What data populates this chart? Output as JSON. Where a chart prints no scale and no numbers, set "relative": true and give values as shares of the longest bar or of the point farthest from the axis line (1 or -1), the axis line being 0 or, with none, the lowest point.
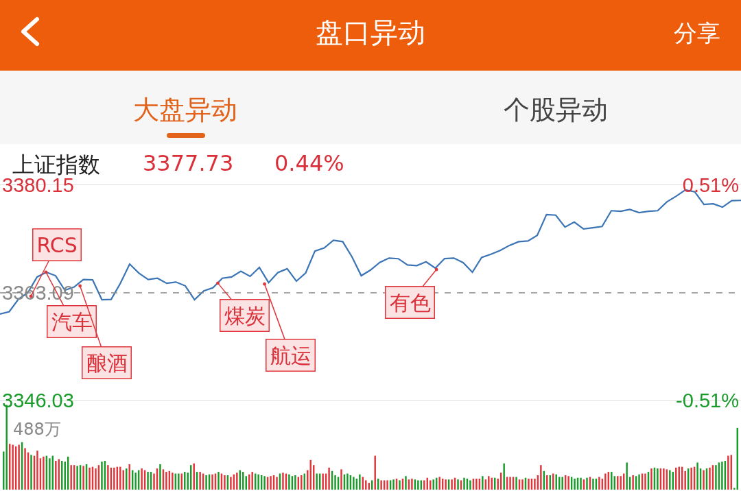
{
  "chart_data": [
    {
      "type": "line",
      "title": "上证指数",
      "annotations": [
        "盘口异动",
        "分享",
        "大盘异动",
        "个股异动",
        "3377.73",
        "0.44%",
        "RCS",
        "汽车",
        "酿酒",
        "煤炭",
        "航运",
        "有色"
      ],
      "categories": [
        null,
        null,
        null,
        null,
        null,
        null,
        null,
        null,
        null,
        null,
        null,
        null,
        null,
        null,
        null,
        null,
        null,
        null,
        null,
        null,
        null,
        null,
        null,
        null,
        null,
        null,
        null,
        null,
        null,
        null,
        null,
        null,
        null,
        null,
        null,
        null,
        null,
        null,
        null,
        null,
        null,
        null,
        null,
        null,
        null,
        null,
        null,
        null,
        null,
        null,
        null,
        null,
        null,
        null,
        null,
        null,
        null,
        null,
        null,
        null,
        null,
        null,
        null,
        null,
        null,
        null,
        null,
        null,
        null,
        null,
        null,
        null,
        null,
        null,
        null,
        null,
        null,
        null,
        null,
        null,
        null
      ],
      "series": [
        {
          "color": "#3a74b5",
          "values": [
            3359.72,
            3360.1,
            3362.1,
            3363.09,
            3365.6,
            3366.35,
            3365.8,
            3363.5,
            3364.0,
            3365.2,
            3365.15,
            3362.0,
            3362.05,
            3364.6,
            3367.65,
            3366.2,
            3365.2,
            3365.4,
            3364.6,
            3364.8,
            3364.2,
            3362.0,
            3363.4,
            3363.9,
            3365.4,
            3365.6,
            3366.5,
            3365.7,
            3367.11,
            3364.7,
            3366.3,
            3366.9,
            3364.94,
            3366.24,
            3369.7,
            3370.2,
            3371.4,
            3371.2,
            3368.8,
            3365.8,
            3366.7,
            3367.9,
            3368.6,
            3368.5,
            3367.5,
            3367.4,
            3368.0,
            3367.0,
            3368.52,
            3368.6,
            3367.87,
            3366.35,
            3368.7,
            3369.2,
            3369.8,
            3370.6,
            3371.2,
            3371.3,
            3372.2,
            3375.5,
            3375.4,
            3373.5,
            3374.3,
            3373.2,
            3373.4,
            3373.6,
            3376.1,
            3376.0,
            3376.3,
            3375.8,
            3376.0,
            3376.1,
            3377.5,
            3378.4,
            3379.4,
            3379.1,
            3377.1,
            3377.2,
            3376.67,
            3377.7,
            3377.73
          ]
        }
      ],
      "ylim": [
        3346.03,
        3380.15
      ],
      "yticks": [
        3346.03,
        3363.09,
        3380.15
      ],
      "y2lim": [
        -0.51,
        0.51
      ],
      "y2ticks": [
        {
          "value": -0.51,
          "label": "-0.51%"
        },
        {
          "value": 0.51,
          "label": "0.51%"
        }
      ],
      "ref_lines": [
        {
          "axis": "y",
          "value": 3363.09,
          "color": "#888888",
          "line_style": "dashed"
        }
      ],
      "tick_labels": "y",
      "marker": "none",
      "line_style": "solid"
    },
    {
      "type": "bar",
      "relative": true,
      "tick_labels": false,
      "annotations": [
        "488万"
      ],
      "categories": [
        null,
        null,
        null,
        null,
        null,
        null,
        null,
        null,
        null,
        null,
        null,
        null,
        null,
        null,
        null,
        null,
        null,
        null,
        null,
        null,
        null,
        null,
        null,
        null,
        null,
        null,
        null,
        null,
        null,
        null,
        null,
        null,
        null,
        null,
        null,
        null,
        null,
        null,
        null,
        null,
        null,
        null,
        null,
        null,
        null,
        null,
        null,
        null,
        null,
        null,
        null,
        null,
        null,
        null,
        null,
        null,
        null,
        null,
        null,
        null,
        null,
        null,
        null,
        null,
        null,
        null,
        null,
        null,
        null,
        null,
        null,
        null,
        null,
        null,
        null,
        null,
        null,
        null,
        null,
        null,
        null,
        null,
        null,
        null,
        null,
        null,
        null,
        null,
        null,
        null,
        null,
        null,
        null,
        null,
        null,
        null,
        null,
        null,
        null,
        null,
        null,
        null,
        null,
        null,
        null,
        null,
        null,
        null,
        null,
        null,
        null,
        null,
        null,
        null,
        null,
        null,
        null,
        null,
        null,
        null,
        null,
        null,
        null,
        null,
        null,
        null,
        null,
        null,
        null,
        null,
        null,
        null,
        null,
        null,
        null,
        null,
        null,
        null,
        null,
        null,
        null,
        null,
        null,
        null,
        null,
        null,
        null,
        null,
        null,
        null,
        null,
        null,
        null,
        null,
        null,
        null,
        null,
        null,
        null,
        null,
        null,
        null,
        null,
        null,
        null,
        null,
        null,
        null,
        null,
        null,
        null,
        null,
        null,
        null,
        null,
        null,
        null,
        null,
        null,
        null,
        null,
        null,
        null,
        null,
        null,
        null,
        null,
        null,
        null,
        null,
        null,
        null,
        null,
        null,
        null,
        null,
        null,
        null,
        null,
        null,
        null,
        null,
        null,
        null,
        null,
        null,
        null,
        null,
        null,
        null,
        null,
        null,
        null,
        null,
        null,
        null,
        null,
        null,
        null,
        null,
        null,
        null,
        null,
        null,
        null,
        null,
        null,
        null,
        null,
        null,
        null,
        null,
        null,
        null,
        null,
        null,
        null,
        null,
        null,
        null
      ],
      "values": [
        0.45,
        1,
        0.54,
        0.53,
        0.51,
        0.53,
        0.56,
        0.49,
        0.44,
        0.41,
        0.4,
        0.46,
        0.37,
        0.39,
        0.4,
        0.37,
        0.4,
        0.34,
        0.36,
        0.34,
        0.33,
        0.39,
        0.29,
        0.29,
        0.28,
        0.29,
        0.28,
        0.3,
        0.26,
        0.27,
        0.25,
        0.29,
        0.33,
        0.34,
        0.29,
        0.26,
        0.26,
        0.27,
        0.27,
        0.23,
        0.25,
        0.3,
        0.23,
        0.2,
        0.23,
        0.25,
        0.23,
        0.21,
        0.21,
        0.19,
        0.25,
        0.3,
        0.24,
        0.21,
        0.22,
        0.2,
        0.19,
        0.19,
        0.19,
        0.21,
        0.2,
        0.29,
        0.31,
        0.21,
        0.21,
        0.19,
        0.17,
        0.18,
        0.18,
        0.19,
        0.21,
        0.19,
        0.17,
        0.17,
        0.15,
        0.18,
        0.2,
        0.23,
        0.21,
        0.16,
        0.18,
        0.21,
        0.19,
        0.18,
        0.17,
        0.16,
        0.15,
        0.16,
        0.17,
        0.15,
        0.19,
        0.2,
        0.19,
        0.18,
        0.16,
        0.17,
        0.15,
        0.17,
        0.19,
        0.23,
        0.35,
        0.29,
        0.19,
        0.19,
        0.19,
        0.19,
        0.26,
        0.22,
        0.17,
        0.15,
        0.24,
        0.18,
        0.19,
        0.17,
        0.15,
        0.13,
        0.18,
        0.15,
        0.11,
        0.08,
        0.11,
        0.4,
        0.13,
        0.11,
        0.11,
        0.11,
        0.11,
        0.12,
        0.13,
        0.11,
        0.13,
        0.16,
        0.12,
        0.13,
        0.12,
        0.11,
        0.11,
        0.11,
        0.14,
        0.11,
        0.12,
        0.14,
        0.15,
        0.13,
        0.12,
        0.12,
        0.12,
        0.14,
        0.12,
        0.11,
        0.14,
        0.13,
        0.11,
        0.13,
        0.13,
        0.13,
        0.16,
        0.12,
        0.16,
        0.14,
        0.14,
        0.13,
        0.2,
        0.31,
        0.15,
        0.15,
        0.15,
        0.15,
        0.12,
        0.12,
        0.14,
        0.13,
        0.13,
        0.13,
        0.17,
        0.29,
        0.22,
        0.17,
        0.17,
        0.19,
        0.18,
        0.15,
        0.15,
        0.17,
        0.16,
        0.15,
        0.13,
        0.14,
        0.14,
        0.12,
        0.14,
        0.15,
        0.13,
        0.13,
        0.15,
        0.13,
        0.19,
        0.21,
        0.21,
        0.16,
        0.16,
        0.16,
        0.19,
        0.32,
        0.15,
        0.17,
        0.16,
        0.18,
        0.19,
        0.19,
        0.21,
        0.25,
        0.26,
        0.25,
        0.25,
        0.25,
        0.24,
        0.23,
        0.21,
        0.26,
        0.27,
        0.27,
        0.22,
        0.25,
        0.26,
        0.27,
        0.32,
        0.25,
        0.23,
        0.25,
        0.26,
        0.29,
        0.29,
        0.32,
        0.33,
        0.34,
        0.4,
        0.41,
        0.02,
        0.73
      ],
      "colors": [
        "#199b2a",
        "#199b2a",
        "#e0353a",
        "#e0353a",
        "#e0353a",
        "#e0353a",
        "#199b2a",
        "#e0353a",
        "#e0353a",
        "#199b2a",
        "#e0353a",
        "#e0353a",
        "#e0353a",
        "#e0353a",
        "#199b2a",
        "#199b2a",
        "#199b2a",
        "#e0353a",
        "#e0353a",
        "#199b2a",
        "#199b2a",
        "#199b2a",
        "#e0353a",
        "#e0353a",
        "#199b2a",
        "#199b2a",
        "#e0353a",
        "#199b2a",
        "#e0353a",
        "#e0353a",
        "#e0353a",
        "#e0353a",
        "#199b2a",
        "#199b2a",
        "#e0353a",
        "#e0353a",
        "#e0353a",
        "#e0353a",
        "#e0353a",
        "#e0353a",
        "#199b2a",
        "#e0353a",
        "#199b2a",
        "#199b2a",
        "#199b2a",
        "#e0353a",
        "#e0353a",
        "#199b2a",
        "#199b2a",
        "#e0353a",
        "#e0353a",
        "#199b2a",
        "#e0353a",
        "#e0353a",
        "#e0353a",
        "#e0353a",
        "#199b2a",
        "#199b2a",
        "#e0353a",
        "#199b2a",
        "#199b2a",
        "#199b2a",
        "#e0353a",
        "#199b2a",
        "#e0353a",
        "#e0353a",
        "#199b2a",
        "#199b2a",
        "#e0353a",
        "#e0353a",
        "#199b2a",
        "#e0353a",
        "#e0353a",
        "#199b2a",
        "#e0353a",
        "#e0353a",
        "#e0353a",
        "#199b2a",
        "#199b2a",
        "#199b2a",
        "#e0353a",
        "#e0353a",
        "#199b2a",
        "#199b2a",
        "#199b2a",
        "#199b2a",
        "#e0353a",
        "#e0353a",
        "#e0353a",
        "#e0353a",
        "#199b2a",
        "#e0353a",
        "#e0353a",
        "#199b2a",
        "#199b2a",
        "#199b2a",
        "#e0353a",
        "#e0353a",
        "#199b2a",
        "#e0353a",
        "#e0353a",
        "#e0353a",
        "#199b2a",
        "#199b2a",
        "#e0353a",
        "#e0353a",
        "#e0353a",
        "#199b2a",
        "#199b2a",
        "#199b2a",
        "#e0353a",
        "#199b2a",
        "#199b2a",
        "#199b2a",
        "#199b2a",
        "#199b2a",
        "#199b2a",
        "#e0353a",
        "#e0353a",
        "#e0353a",
        "#199b2a",
        "#e0353a",
        "#199b2a",
        "#e0353a",
        "#e0353a",
        "#e0353a",
        "#199b2a",
        "#199b2a",
        "#e0353a",
        "#199b2a",
        "#e0353a",
        "#199b2a",
        "#e0353a",
        "#e0353a",
        "#199b2a",
        "#199b2a",
        "#199b2a",
        "#e0353a",
        "#e0353a",
        "#e0353a",
        "#199b2a",
        "#199b2a",
        "#e0353a",
        "#e0353a",
        "#e0353a",
        "#199b2a",
        "#e0353a",
        "#e0353a",
        "#199b2a",
        "#e0353a",
        "#199b2a",
        "#199b2a",
        "#199b2a",
        "#e0353a",
        "#e0353a",
        "#e0353a",
        "#199b2a",
        "#e0353a",
        "#e0353a",
        "#e0353a",
        "#199b2a",
        "#e0353a",
        "#e0353a",
        "#199b2a",
        "#e0353a",
        "#e0353a",
        "#e0353a",
        "#199b2a",
        "#e0353a",
        "#e0353a",
        "#199b2a",
        "#e0353a",
        "#e0353a",
        "#e0353a",
        "#e0353a",
        "#e0353a",
        "#199b2a",
        "#e0353a",
        "#199b2a",
        "#e0353a",
        "#199b2a",
        "#199b2a",
        "#199b2a",
        "#e0353a",
        "#e0353a",
        "#199b2a",
        "#199b2a",
        "#199b2a",
        "#199b2a",
        "#e0353a",
        "#199b2a",
        "#e0353a",
        "#199b2a",
        "#199b2a",
        "#e0353a",
        "#e0353a",
        "#e0353a",
        "#e0353a",
        "#199b2a",
        "#199b2a",
        "#e0353a",
        "#e0353a",
        "#e0353a",
        "#199b2a",
        "#199b2a",
        "#e0353a",
        "#199b2a",
        "#199b2a",
        "#e0353a",
        "#e0353a",
        "#199b2a",
        "#e0353a",
        "#199b2a",
        "#199b2a",
        "#e0353a",
        "#e0353a",
        "#e0353a",
        "#199b2a",
        "#199b2a",
        "#e0353a",
        "#e0353a",
        "#e0353a",
        "#e0353a",
        "#199b2a",
        "#e0353a",
        "#e0353a",
        "#199b2a",
        "#199b2a",
        "#e0353a",
        "#199b2a",
        "#e0353a",
        "#e0353a",
        "#199b2a",
        "#199b2a",
        "#199b2a",
        "#199b2a",
        "#e0353a",
        "#e0353a",
        "#199b2a",
        "#199b2a"
      ]
    }
  ]
}
